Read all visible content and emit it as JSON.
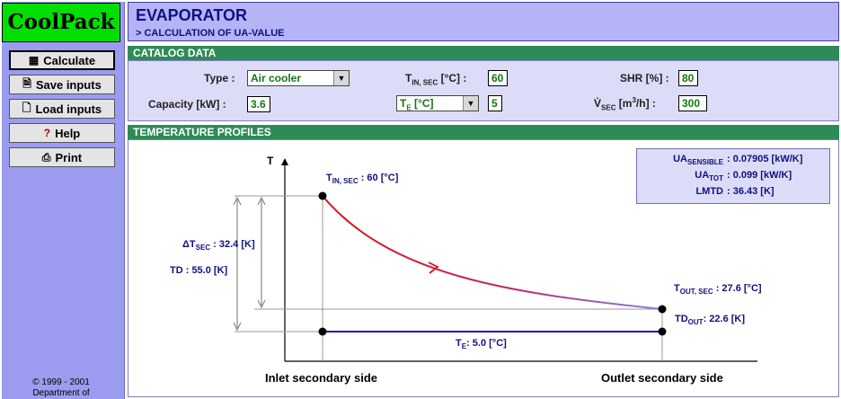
{
  "app": {
    "logo": "CoolPack"
  },
  "sidebar": {
    "calculate": "Calculate",
    "save": "Save inputs",
    "load": "Load inputs",
    "help": "Help",
    "print": "Print",
    "copyright_line1": "© 1999 - 2001",
    "copyright_line2": "Department of"
  },
  "header": {
    "title": "EVAPORATOR",
    "subtitle": "> CALCULATION OF UA-VALUE"
  },
  "catalog": {
    "section": "CATALOG DATA",
    "type_label": "Type :",
    "type_value": "Air cooler",
    "capacity_label": "Capacity [kW] :",
    "capacity_value": "3.6",
    "tin_label_main": "T",
    "tin_label_sub": "IN, SEC",
    "tin_label_unit": " [°C] :",
    "tin_value": "60",
    "te_select": "T",
    "te_select_sub": "E",
    "te_select_unit": " [°C]",
    "te_value": "5",
    "shr_label": "SHR [%] :",
    "shr_value": "80",
    "vsec_label_main": "V̇",
    "vsec_label_sub": "SEC",
    "vsec_label_unit1": " [m",
    "vsec_label_sup": "3",
    "vsec_label_unit2": "/h] :",
    "vsec_value": "300"
  },
  "profiles": {
    "section": "TEMPERATURE PROFILES",
    "axis_t": "T",
    "x_inlet": "Inlet secondary side",
    "x_outlet": "Outlet secondary side",
    "tin_main": "T",
    "tin_sub": "IN, SEC",
    "tin_text": " : 60 [°C]",
    "tout_main": "T",
    "tout_sub": "OUT, SEC",
    "tout_text": " :  27.6 [°C]",
    "te_main": "T",
    "te_sub": "E",
    "te_text": ":  5.0 [°C]",
    "dt_main": "ΔT",
    "dt_sub": "SEC",
    "dt_text": " : 32.4 [K]",
    "td_text": "TD : 55.0 [K]",
    "tdout_main": "TD",
    "tdout_sub": "OUT",
    "tdout_text": ":  22.6 [K]"
  },
  "results": {
    "ua_sens_main": "UA",
    "ua_sens_sub": "SENSIBLE",
    "ua_sens_value": ":  0.07905 [kW/K]",
    "ua_tot_main": "UA",
    "ua_tot_sub": "TOT",
    "ua_tot_value": ":  0.099 [kW/K]",
    "lmtd_label": "LMTD",
    "lmtd_value": ":  36.43 [K]"
  },
  "colors": {
    "curve_start": "#e01010",
    "curve_end": "#8080e0",
    "evap_line": "#1010c0",
    "value_text": "#117711",
    "section_bar": "#2e8b57"
  }
}
